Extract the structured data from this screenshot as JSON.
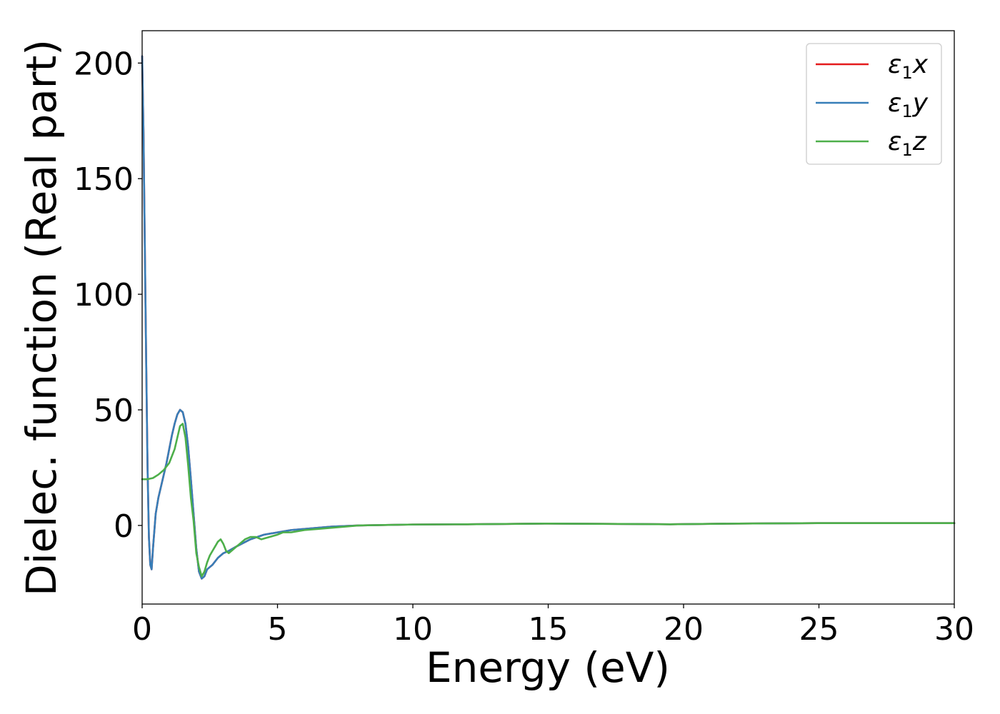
{
  "chart_data": {
    "type": "line",
    "title": "",
    "xlabel": "Energy (eV)",
    "ylabel": "Dielec. function (Real part)",
    "xlim": [
      0,
      30
    ],
    "ylim": [
      -34,
      214
    ],
    "xticks": [
      0,
      5,
      10,
      15,
      20,
      25,
      30
    ],
    "yticks": [
      0,
      50,
      100,
      150,
      200
    ],
    "grid": false,
    "legend_position": "top-right",
    "series": [
      {
        "name": "x",
        "legend_symbol": "ε",
        "legend_subscript": "1",
        "color": "#e41a1c",
        "x": [
          0,
          0.05,
          0.1,
          0.15,
          0.2,
          0.25,
          0.3,
          0.35,
          0.4,
          0.5,
          0.6,
          0.7,
          0.8,
          0.9,
          1.0,
          1.1,
          1.2,
          1.3,
          1.4,
          1.5,
          1.6,
          1.7,
          1.8,
          1.9,
          2.0,
          2.1,
          2.2,
          2.3,
          2.4,
          2.5,
          2.6,
          2.8,
          3.0,
          3.2,
          3.5,
          4.0,
          4.5,
          5.0,
          5.5,
          6.0,
          7.0,
          8.0,
          10.0,
          12.0,
          15.0,
          17.0,
          19.5,
          22.0,
          25.0,
          27.0,
          30.0
        ],
        "y": [
          203,
          170,
          120,
          70,
          25,
          -5,
          -17,
          -19,
          -10,
          5,
          12,
          17,
          22,
          27,
          33,
          39,
          44,
          48,
          50,
          49,
          44,
          34,
          20,
          5,
          -10,
          -20,
          -23,
          -22,
          -19,
          -18,
          -17,
          -14,
          -12,
          -11,
          -9,
          -6,
          -4,
          -3,
          -2,
          -1.5,
          -0.5,
          0,
          0.4,
          0.5,
          0.8,
          0.7,
          0.5,
          0.8,
          1.0,
          1.0,
          1.0
        ]
      },
      {
        "name": "y",
        "legend_symbol": "ε",
        "legend_subscript": "1",
        "color": "#377eb8",
        "x": [
          0,
          0.05,
          0.1,
          0.15,
          0.2,
          0.25,
          0.3,
          0.35,
          0.4,
          0.5,
          0.6,
          0.7,
          0.8,
          0.9,
          1.0,
          1.1,
          1.2,
          1.3,
          1.4,
          1.5,
          1.6,
          1.7,
          1.8,
          1.9,
          2.0,
          2.1,
          2.2,
          2.3,
          2.4,
          2.5,
          2.6,
          2.8,
          3.0,
          3.2,
          3.5,
          4.0,
          4.5,
          5.0,
          5.5,
          6.0,
          7.0,
          8.0,
          10.0,
          12.0,
          15.0,
          17.0,
          19.5,
          22.0,
          25.0,
          27.0,
          30.0
        ],
        "y": [
          203,
          170,
          120,
          70,
          25,
          -5,
          -17,
          -19,
          -10,
          5,
          12,
          17,
          22,
          27,
          33,
          39,
          44,
          48,
          50,
          49,
          44,
          34,
          20,
          5,
          -10,
          -20,
          -23,
          -22,
          -19,
          -18,
          -17,
          -14,
          -12,
          -11,
          -9,
          -6,
          -4,
          -3,
          -2,
          -1.5,
          -0.5,
          0,
          0.4,
          0.5,
          0.8,
          0.7,
          0.5,
          0.8,
          1.0,
          1.0,
          1.0
        ]
      },
      {
        "name": "z",
        "legend_symbol": "ε",
        "legend_subscript": "1",
        "color": "#4daf4a",
        "x": [
          0,
          0.2,
          0.4,
          0.6,
          0.8,
          1.0,
          1.1,
          1.2,
          1.3,
          1.4,
          1.5,
          1.6,
          1.7,
          1.8,
          1.9,
          2.0,
          2.1,
          2.2,
          2.3,
          2.4,
          2.5,
          2.6,
          2.7,
          2.8,
          2.9,
          3.0,
          3.1,
          3.2,
          3.4,
          3.6,
          3.8,
          4.0,
          4.2,
          4.4,
          4.7,
          5.0,
          5.2,
          5.5,
          6.0,
          6.5,
          7.0,
          7.5,
          8.0,
          10.0,
          12.0,
          15.0,
          17.0,
          19.5,
          22.0,
          25.0,
          27.0,
          30.0
        ],
        "y": [
          20,
          20,
          20.5,
          22,
          24,
          27,
          30,
          33,
          38,
          43,
          44,
          38,
          26,
          12,
          2,
          -12,
          -18,
          -22,
          -20,
          -16,
          -13,
          -11,
          -9,
          -7,
          -6,
          -8,
          -11,
          -12,
          -10,
          -8,
          -6,
          -5,
          -5,
          -6,
          -5,
          -4,
          -3,
          -3,
          -2,
          -1.5,
          -1,
          -0.5,
          0,
          0.4,
          0.5,
          0.8,
          0.7,
          0.5,
          0.8,
          1.0,
          1.0,
          1.0
        ]
      }
    ]
  }
}
